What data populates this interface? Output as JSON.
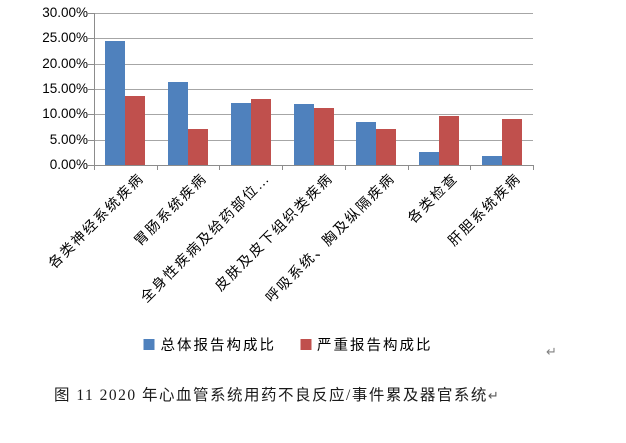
{
  "chart_data": {
    "type": "bar",
    "title": "",
    "categories": [
      "各类神经系统疾病",
      "胃肠系统疾病",
      "全身性疾病及给药部位…",
      "皮肤及皮下组织类疾病",
      "呼吸系统、胸及纵隔疾病",
      "各类检查",
      "肝胆系统疾病"
    ],
    "series": [
      {
        "name": "总体报告构成比",
        "color": "#4f81bd",
        "values": [
          24.5,
          16.4,
          12.3,
          12.1,
          8.4,
          2.5,
          1.8
        ]
      },
      {
        "name": "严重报告构成比",
        "color": "#c0504d",
        "values": [
          13.6,
          7.2,
          13.1,
          11.2,
          7.2,
          9.6,
          9.0
        ]
      }
    ],
    "ylabel": "",
    "xlabel": "",
    "ylim": [
      0,
      30
    ],
    "ytick_step": 5,
    "ytick_labels": [
      "30.00%",
      "25.00%",
      "20.00%",
      "15.00%",
      "10.00%",
      "5.00%",
      "0.00%"
    ],
    "grid": true,
    "legend_position": "bottom",
    "value_format": "percent"
  },
  "legend": {
    "items": [
      {
        "label": "总体报告构成比",
        "color": "#4f81bd"
      },
      {
        "label": "严重报告构成比",
        "color": "#c0504d"
      }
    ]
  },
  "caption": {
    "text": "图 11  2020 年心血管系统用药不良反应/事件累及器官系统",
    "return_mark": "↵"
  },
  "marks": {
    "after_chart_return": "↵"
  },
  "colors": {
    "series_blue": "#4f81bd",
    "series_red": "#c0504d",
    "gridline": "#a6a6a6",
    "axis": "#8c8c8c",
    "background": "#ffffff"
  }
}
